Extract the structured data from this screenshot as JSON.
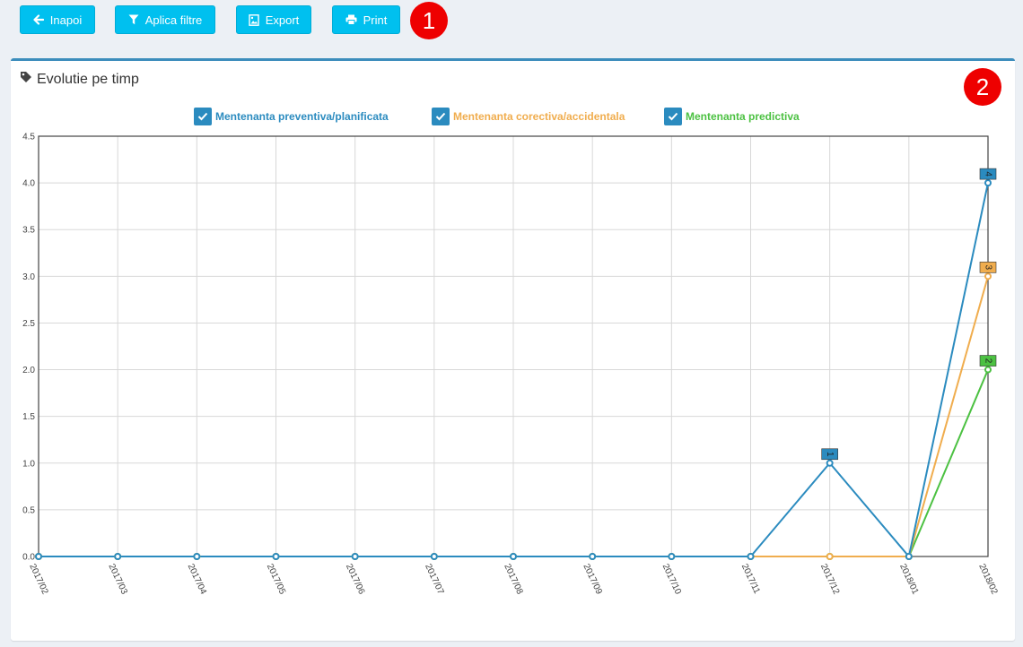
{
  "toolbar": {
    "back_label": "Inapoi",
    "filter_label": "Aplica filtre",
    "export_label": "Export",
    "print_label": "Print"
  },
  "badges": {
    "first": "1",
    "second": "2"
  },
  "panel": {
    "title": "Evolutie pe timp"
  },
  "colors": {
    "button": "#00c0ef",
    "panel_border": "#3c8dbc",
    "checkbox": "#2b8bbf",
    "badge": "#ee0000"
  },
  "chart_data": {
    "type": "line",
    "title": "",
    "xlabel": "",
    "ylabel": "",
    "categories": [
      "2017/02",
      "2017/03",
      "2017/04",
      "2017/05",
      "2017/06",
      "2017/07",
      "2017/08",
      "2017/09",
      "2017/10",
      "2017/11",
      "2017/12",
      "2018/01",
      "2018/02"
    ],
    "ylim": [
      0,
      4.5
    ],
    "yticks": [
      "0.0",
      "0.5",
      "1.0",
      "1.5",
      "2.0",
      "2.5",
      "3.0",
      "3.5",
      "4.0",
      "4.5"
    ],
    "grid": true,
    "legend_position": "top-center",
    "series": [
      {
        "name": "Mentenanta preventiva/planificata",
        "color": "#2b8bbf",
        "values": [
          0,
          0,
          0,
          0,
          0,
          0,
          0,
          0,
          0,
          0,
          1,
          0,
          4
        ]
      },
      {
        "name": "Mentenanta corectiva/accidentala",
        "color": "#f0ad4e",
        "values": [
          0,
          0,
          0,
          0,
          0,
          0,
          0,
          0,
          0,
          0,
          0,
          0,
          3
        ]
      },
      {
        "name": "Mentenanta predictiva",
        "color": "#4cc142",
        "values": [
          0,
          0,
          0,
          0,
          0,
          0,
          0,
          0,
          0,
          0,
          0,
          0,
          2
        ]
      }
    ],
    "data_labels": [
      {
        "series": 0,
        "index": 10,
        "text": "1"
      },
      {
        "series": 0,
        "index": 12,
        "text": "4"
      },
      {
        "series": 1,
        "index": 12,
        "text": "3"
      },
      {
        "series": 2,
        "index": 12,
        "text": "2"
      }
    ]
  }
}
